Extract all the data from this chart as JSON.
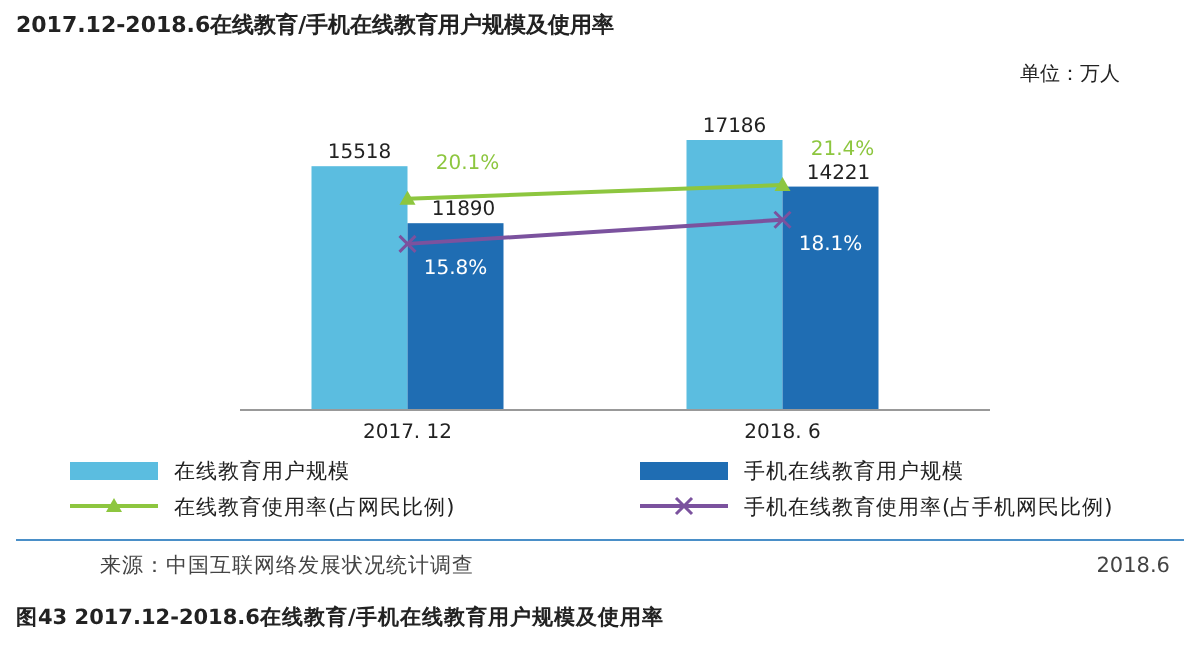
{
  "chart_data": {
    "type": "bar",
    "title": "2017.12-2018.6在线教育/手机在线教育用户规模及使用率",
    "categories": [
      "2017. 12",
      "2018. 6"
    ],
    "series": [
      {
        "name": "在线教育用户规模",
        "color": "#5bbde0",
        "values": [
          15518,
          17186
        ],
        "value_labels": [
          "15518",
          "17186"
        ]
      },
      {
        "name": "手机在线教育用户规模",
        "color": "#1f6db3",
        "values": [
          11890,
          14221
        ],
        "value_labels": [
          "11890",
          "14221"
        ]
      },
      {
        "name": "在线教育使用率(占网民比例)",
        "type": "line",
        "axis": "y2",
        "marker": "triangle",
        "color": "#8dc63f",
        "values": [
          20.1,
          21.4
        ],
        "value_labels": [
          "20.1%",
          "21.4%"
        ]
      },
      {
        "name": "手机在线教育使用率(占手机网民比例)",
        "type": "line",
        "axis": "y2",
        "marker": "cross",
        "color": "#7b529e",
        "values": [
          15.8,
          18.1
        ],
        "value_labels": [
          "15.8%",
          "18.1%"
        ]
      }
    ],
    "tick_labels": "x",
    "legend": "bottom",
    "annotations": [
      "单位：万人",
      "来源：中国互联网络发展状况统计调查",
      "2018.6",
      "图43 2017.12-2018.6在线教育/手机在线教育用户规模及使用率"
    ]
  }
}
